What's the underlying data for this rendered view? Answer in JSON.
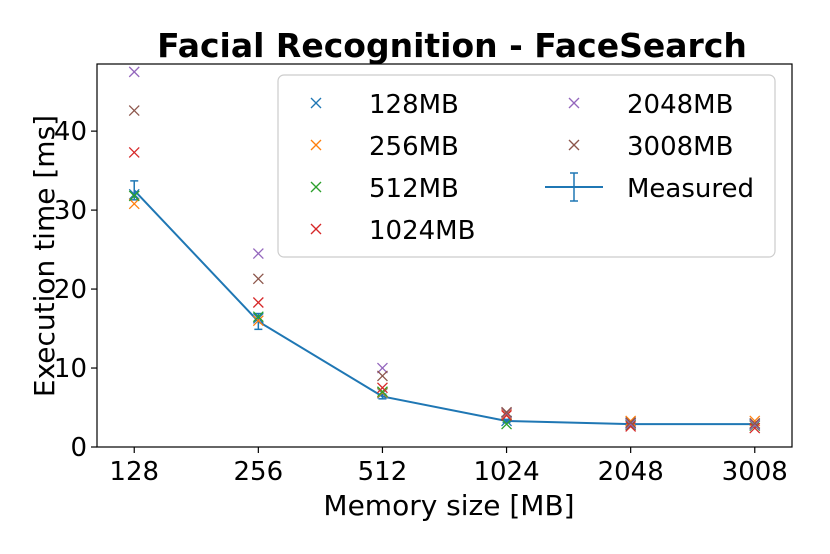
{
  "chart_data": {
    "type": "scatter",
    "title": "Facial Recognition - FaceSearch",
    "xlabel": "Memory size [MB]",
    "ylabel": "Execution time [ms]",
    "categories": [
      "128",
      "256",
      "512",
      "1024",
      "2048",
      "3008"
    ],
    "ylim": [
      0,
      48.5
    ],
    "yticks": [
      0,
      10,
      20,
      30,
      40
    ],
    "grid": false,
    "legend_position": "top-right",
    "series": [
      {
        "name": "128MB",
        "color": "#1f77b4",
        "marker": "x",
        "values": [
          32.0,
          16.3,
          6.8,
          3.3,
          3.0,
          2.9
        ]
      },
      {
        "name": "256MB",
        "color": "#ff7f0e",
        "marker": "x",
        "values": [
          30.8,
          16.0,
          6.9,
          4.2,
          3.3,
          3.3
        ]
      },
      {
        "name": "512MB",
        "color": "#2ca02c",
        "marker": "x",
        "values": [
          31.8,
          16.5,
          7.0,
          2.9,
          2.8,
          2.7
        ]
      },
      {
        "name": "1024MB",
        "color": "#d62728",
        "marker": "x",
        "values": [
          37.3,
          18.3,
          7.5,
          4.0,
          2.6,
          2.4
        ]
      },
      {
        "name": "2048MB",
        "color": "#9467bd",
        "marker": "x",
        "values": [
          47.5,
          24.5,
          10.0,
          4.3,
          2.9,
          2.8
        ]
      },
      {
        "name": "3008MB",
        "color": "#8c564b",
        "marker": "x",
        "values": [
          42.6,
          21.3,
          9.0,
          4.4,
          3.1,
          3.0
        ]
      }
    ],
    "measured": {
      "name": "Measured",
      "color": "#1f77b4",
      "values": [
        32.5,
        15.9,
        6.4,
        3.3,
        2.9,
        2.9
      ],
      "errors": [
        1.2,
        1.0,
        0.3,
        0.2,
        0.1,
        0.1
      ]
    }
  }
}
